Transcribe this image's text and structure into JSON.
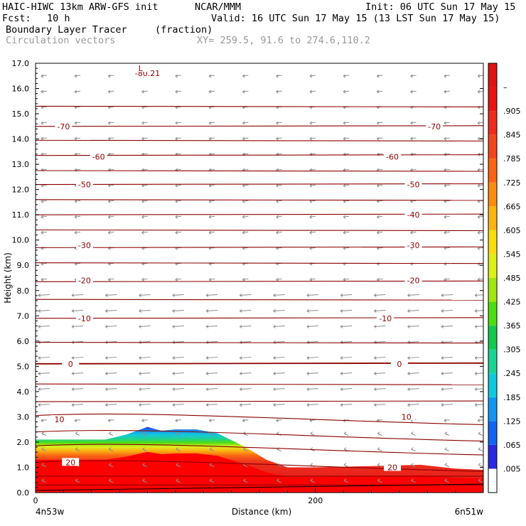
{
  "header": {
    "title_left": "HAIC-HIWC 13km ARW-GFS init",
    "org": "NCAR/MMM",
    "init": "Init: 06 UTC Sun 17 May 15",
    "fcst_label": "Fcst:",
    "fcst_value": "10 h",
    "valid": "Valid: 16 UTC Sun 17 May 15 (13 LST Sun 17 May 15)",
    "field1_name": "Boundary Layer Tracer",
    "field1_units": "(fraction)",
    "field2_name": "Circulation vectors",
    "cross_section": "XY= 259.5, 91.6 to 274.6,110.2"
  },
  "chart_data": {
    "type": "cross-section",
    "ylabel": "Height (km)",
    "xlabel": "Distance (km)",
    "ylim": [
      0,
      17
    ],
    "xlim": [
      0,
      320
    ],
    "y_ticks": [
      "0.0",
      "1.0",
      "2.0",
      "3.0",
      "4.0",
      "5.0",
      "6.0",
      "7.0",
      "8.0",
      "9.0",
      "10.0",
      "11.0",
      "12.0",
      "13.0",
      "14.0",
      "15.0",
      "16.0",
      "17.0"
    ],
    "x_ticks": [
      {
        "value": 0,
        "label": "0"
      },
      {
        "value": 200,
        "label": "200"
      }
    ],
    "x_end_labels": {
      "left": "4n53w",
      "right": "6n51w"
    },
    "colorbar": {
      "labels": [
        ".005",
        ".065",
        ".125",
        ".185",
        ".245",
        ".305",
        ".365",
        ".425",
        ".485",
        ".545",
        ".605",
        ".665",
        ".725",
        ".785",
        ".845",
        ".905",
        "–"
      ],
      "colors": [
        "#ffffff",
        "#2a2adc",
        "#1464f0",
        "#1496f0",
        "#14c8dc",
        "#1ed296",
        "#14c850",
        "#50dc14",
        "#a0e614",
        "#dcf01e",
        "#fadc14",
        "#fab414",
        "#fa8c14",
        "#fa6414",
        "#f0461e",
        "#eb2d1e",
        "#e61414",
        "#dc1414"
      ]
    },
    "tracer_top_km": [
      [
        0,
        2.1
      ],
      [
        30,
        2.1
      ],
      [
        50,
        2.1
      ],
      [
        65,
        2.3
      ],
      [
        80,
        2.6
      ],
      [
        90,
        2.45
      ],
      [
        100,
        2.5
      ],
      [
        115,
        2.5
      ],
      [
        130,
        2.35
      ],
      [
        150,
        1.8
      ],
      [
        165,
        1.3
      ],
      [
        180,
        1.0
      ],
      [
        200,
        1.0
      ],
      [
        240,
        1.05
      ],
      [
        275,
        1.1
      ],
      [
        300,
        0.95
      ],
      [
        320,
        0.9
      ]
    ],
    "temperature_contour_labels": [
      {
        "value": "-80.21",
        "x": 80,
        "y": 16.6
      },
      {
        "value": "-70",
        "x": 20,
        "y": 14.5
      },
      {
        "value": "-70",
        "x": 285,
        "y": 14.5
      },
      {
        "value": "-60",
        "x": 45,
        "y": 13.3
      },
      {
        "value": "-60",
        "x": 255,
        "y": 13.3
      },
      {
        "value": "-50",
        "x": 35,
        "y": 12.2
      },
      {
        "value": "-50",
        "x": 270,
        "y": 12.2
      },
      {
        "value": "-40",
        "x": 270,
        "y": 11.0
      },
      {
        "value": "-30",
        "x": 35,
        "y": 9.8
      },
      {
        "value": "-30",
        "x": 270,
        "y": 9.8
      },
      {
        "value": "-20",
        "x": 35,
        "y": 8.4
      },
      {
        "value": "-20",
        "x": 270,
        "y": 8.4
      },
      {
        "value": "-10",
        "x": 35,
        "y": 6.9
      },
      {
        "value": "-10",
        "x": 250,
        "y": 6.9
      },
      {
        "value": "0",
        "x": 25,
        "y": 5.1
      },
      {
        "value": "0",
        "x": 260,
        "y": 5.1
      },
      {
        "value": "10",
        "x": 17,
        "y": 2.9
      },
      {
        "value": "10",
        "x": 265,
        "y": 3.0
      },
      {
        "value": "20",
        "x": 25,
        "y": 1.2
      },
      {
        "value": "20",
        "x": 255,
        "y": 1.0
      },
      {
        "value": "L",
        "x": 75,
        "y": 16.8
      }
    ],
    "isotherm_heights_km": [
      0.3,
      0.65,
      1.2,
      1.85,
      2.4,
      3.05,
      3.6,
      4.3,
      5.1,
      5.95,
      6.9,
      7.65,
      8.35,
      9.1,
      9.7,
      10.4,
      11.0,
      11.6,
      12.2,
      12.75,
      13.35,
      13.95,
      14.5,
      15.3
    ]
  }
}
